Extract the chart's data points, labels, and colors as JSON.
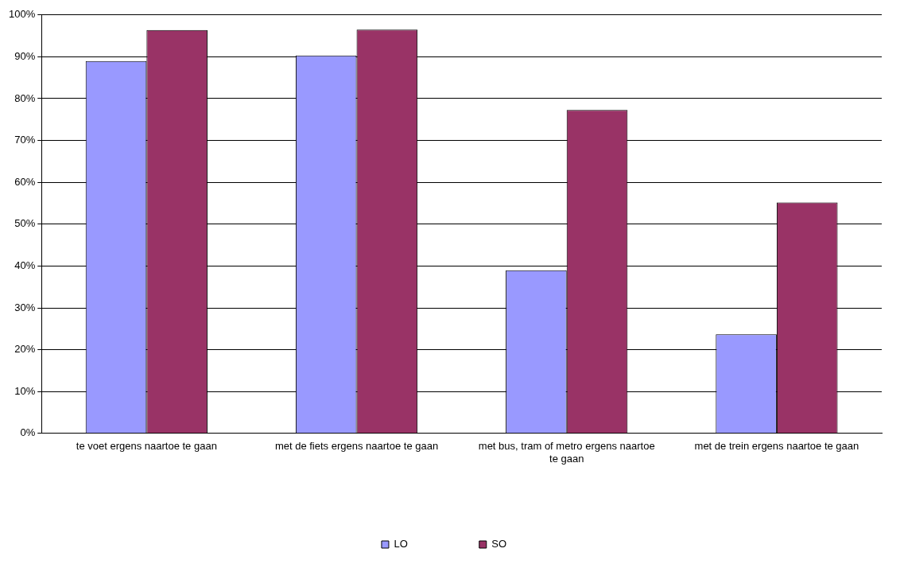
{
  "chart_data": {
    "type": "bar",
    "categories": [
      "te voet ergens naartoe te gaan",
      "met de fiets ergens naartoe te gaan",
      "met bus, tram of metro ergens naartoe te gaan",
      "met de trein ergens naartoe te gaan"
    ],
    "series": [
      {
        "name": "LO",
        "color": "#9999ff",
        "values": [
          89,
          90.3,
          39,
          23.7
        ]
      },
      {
        "name": "SO",
        "color": "#993366",
        "values": [
          96.4,
          96.5,
          77.3,
          55.2
        ]
      }
    ],
    "ylim": [
      0,
      100
    ],
    "yticks": [
      {
        "value": 0,
        "label": "0%"
      },
      {
        "value": 10,
        "label": "10%"
      },
      {
        "value": 20,
        "label": "20%"
      },
      {
        "value": 30,
        "label": "30%"
      },
      {
        "value": 40,
        "label": "40%"
      },
      {
        "value": 50,
        "label": "50%"
      },
      {
        "value": 60,
        "label": "60%"
      },
      {
        "value": 70,
        "label": "70%"
      },
      {
        "value": 80,
        "label": "80%"
      },
      {
        "value": 90,
        "label": "90%"
      },
      {
        "value": 100,
        "label": "100%"
      }
    ],
    "grid": "y",
    "legend": "bottom"
  }
}
